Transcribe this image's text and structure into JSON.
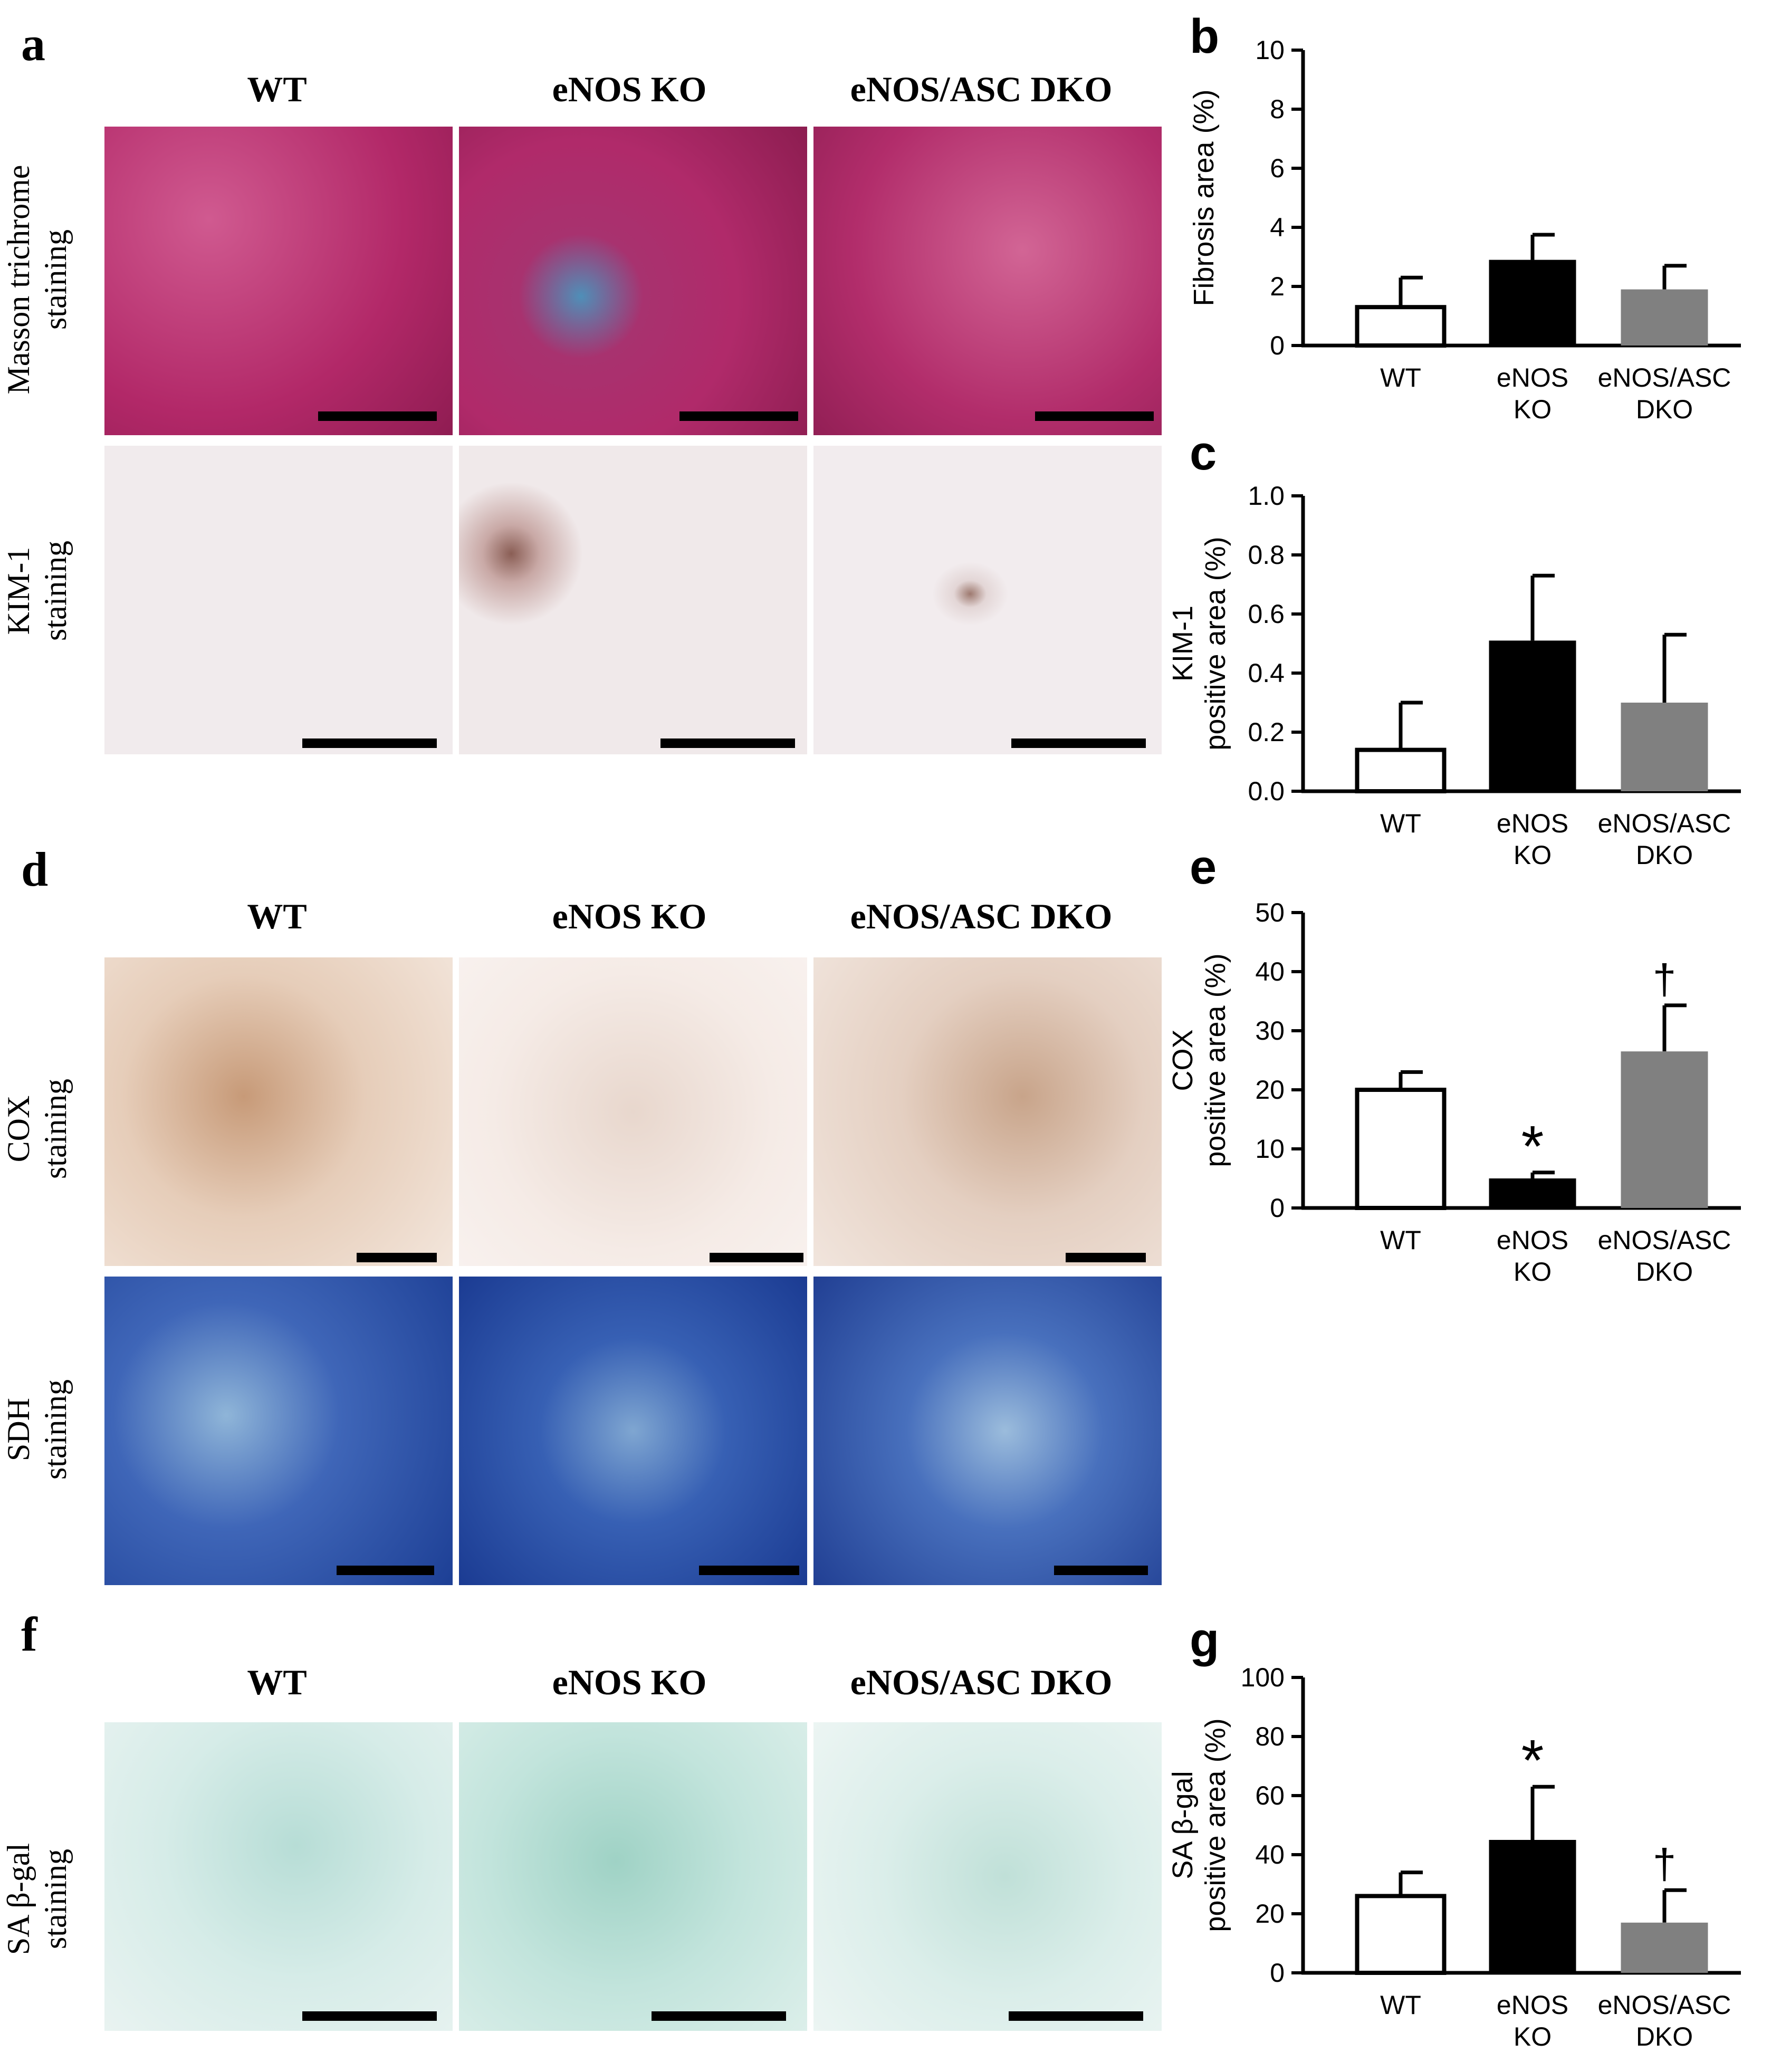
{
  "panels": {
    "a": {
      "label": "a",
      "columns": [
        "WT",
        "eNOS KO",
        "eNOS/ASC DKO"
      ],
      "rows": [
        {
          "label_line1": "Masson trichrome",
          "label_line2": "staining",
          "tone": "#b52a6a"
        },
        {
          "label_line1": "KIM-1",
          "label_line2": "staining",
          "tone": "#efe6e8"
        }
      ]
    },
    "d": {
      "label": "d",
      "columns": [
        "WT",
        "eNOS KO",
        "eNOS/ASC DKO"
      ],
      "rows": [
        {
          "label_line1": "COX",
          "label_line2": "staining",
          "tone": "#f0dfd5"
        },
        {
          "label_line1": "SDH",
          "label_line2": "staining",
          "tone": "#2a4fa8"
        }
      ]
    },
    "f": {
      "label": "f",
      "columns": [
        "WT",
        "eNOS KO",
        "eNOS/ASC DKO"
      ],
      "rows": [
        {
          "label_line1": "SA β-gal",
          "label_line2": "staining",
          "tone": "#c5e6e0"
        }
      ]
    }
  },
  "chart_data": [
    {
      "panel": "b",
      "type": "bar",
      "categories": [
        [
          "WT"
        ],
        [
          "eNOS",
          "KO"
        ],
        [
          "eNOS/ASC",
          "DKO"
        ]
      ],
      "values": [
        1.3,
        2.9,
        1.9
      ],
      "errors": [
        1.0,
        0.85,
        0.8
      ],
      "ylabel": [
        "Fibrosis area (%)"
      ],
      "ylim": [
        0,
        10
      ],
      "yticks": [
        0,
        2,
        4,
        6,
        8,
        10
      ],
      "tick_labels": [
        "0",
        "2",
        "4",
        "6",
        "8",
        "10"
      ],
      "annotations": [
        "",
        "",
        ""
      ],
      "colors": [
        "#ffffff",
        "#000000",
        "#808080"
      ]
    },
    {
      "panel": "c",
      "type": "bar",
      "categories": [
        [
          "WT"
        ],
        [
          "eNOS",
          "KO"
        ],
        [
          "eNOS/ASC",
          "DKO"
        ]
      ],
      "values": [
        0.14,
        0.51,
        0.3
      ],
      "errors": [
        0.16,
        0.22,
        0.23
      ],
      "ylabel": [
        "KIM-1",
        "positive area (%)"
      ],
      "ylim": [
        0,
        1.0
      ],
      "yticks": [
        0,
        0.2,
        0.4,
        0.6,
        0.8,
        1.0
      ],
      "tick_labels": [
        "0.0",
        "0.2",
        "0.4",
        "0.6",
        "0.8",
        "1.0"
      ],
      "annotations": [
        "",
        "",
        ""
      ],
      "colors": [
        "#ffffff",
        "#000000",
        "#808080"
      ]
    },
    {
      "panel": "e",
      "type": "bar",
      "categories": [
        [
          "WT"
        ],
        [
          "eNOS",
          "KO"
        ],
        [
          "eNOS/ASC",
          "DKO"
        ]
      ],
      "values": [
        20,
        5,
        26.5
      ],
      "errors": [
        3,
        1,
        7.8
      ],
      "ylabel": [
        "COX",
        "positive area (%)"
      ],
      "ylim": [
        0,
        50
      ],
      "yticks": [
        0,
        10,
        20,
        30,
        40,
        50
      ],
      "tick_labels": [
        "0",
        "10",
        "20",
        "30",
        "40",
        "50"
      ],
      "annotations": [
        "",
        "*",
        "†"
      ],
      "colors": [
        "#ffffff",
        "#000000",
        "#808080"
      ]
    },
    {
      "panel": "g",
      "type": "bar",
      "categories": [
        [
          "WT"
        ],
        [
          "eNOS",
          "KO"
        ],
        [
          "eNOS/ASC",
          "DKO"
        ]
      ],
      "values": [
        26,
        45,
        17
      ],
      "errors": [
        8,
        18,
        11
      ],
      "ylabel": [
        "SA β-gal",
        "positive area (%)"
      ],
      "ylim": [
        0,
        100
      ],
      "yticks": [
        0,
        20,
        40,
        60,
        80,
        100
      ],
      "tick_labels": [
        "0",
        "20",
        "40",
        "60",
        "80",
        "100"
      ],
      "annotations": [
        "",
        "*",
        "†"
      ],
      "colors": [
        "#ffffff",
        "#000000",
        "#808080"
      ]
    }
  ]
}
